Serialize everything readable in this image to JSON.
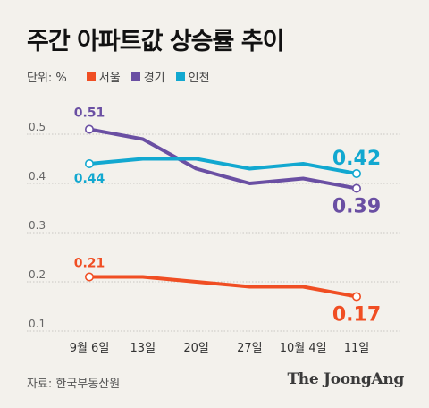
{
  "title": "주간 아파트값 상승률 추이",
  "unit_label": "단위: %",
  "source": "자료: 한국부동산원",
  "brand": "The JoongAng",
  "chart_data": {
    "type": "line",
    "x": [
      "9월 6일",
      "13일",
      "20일",
      "27일",
      "10월 4일",
      "11일"
    ],
    "yticks": [
      0.1,
      0.2,
      0.3,
      0.4,
      0.5
    ],
    "ylim": [
      0.1,
      0.5
    ],
    "grid": true,
    "legend": "top-left",
    "series": [
      {
        "name": "서울",
        "color": "#f04e23",
        "values": [
          0.21,
          0.21,
          0.2,
          0.19,
          0.19,
          0.17
        ]
      },
      {
        "name": "경기",
        "color": "#6a4fa3",
        "values": [
          0.51,
          0.49,
          0.43,
          0.4,
          0.41,
          0.39
        ]
      },
      {
        "name": "인천",
        "color": "#12a8d0",
        "values": [
          0.44,
          0.45,
          0.45,
          0.43,
          0.44,
          0.42
        ]
      }
    ],
    "annotations": [
      {
        "series": "경기",
        "index": 0,
        "text": "0.51"
      },
      {
        "series": "인천",
        "index": 0,
        "text": "0.44"
      },
      {
        "series": "서울",
        "index": 0,
        "text": "0.21"
      },
      {
        "series": "인천",
        "index": 5,
        "text": "0.42"
      },
      {
        "series": "경기",
        "index": 5,
        "text": "0.39"
      },
      {
        "series": "서울",
        "index": 5,
        "text": "0.17"
      }
    ]
  }
}
